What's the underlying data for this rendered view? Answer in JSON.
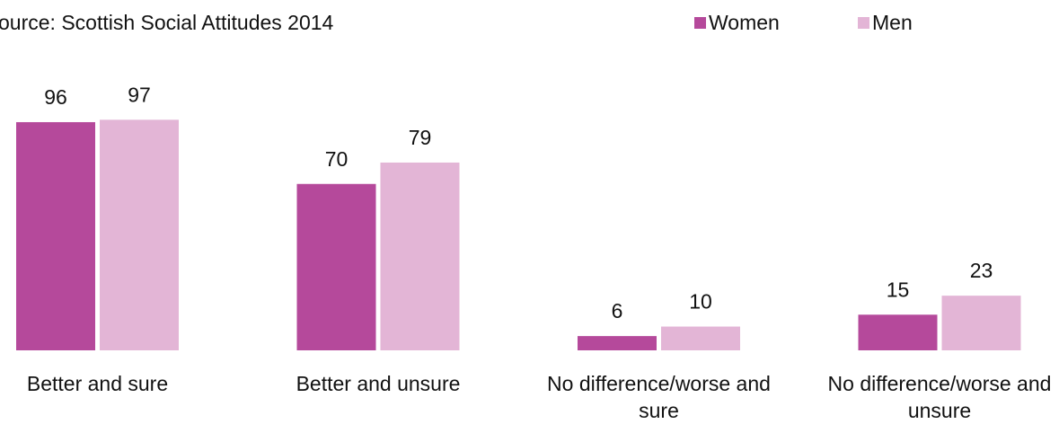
{
  "chart_data": {
    "type": "bar",
    "subtitle": "ource: Scottish Social Attitudes 2014",
    "categories": [
      "Better and sure",
      "Better and unsure",
      "No difference/worse and sure",
      "No difference/worse and unsure"
    ],
    "series": [
      {
        "name": "Women",
        "color": "#b5499b",
        "values": [
          96,
          70,
          6,
          15
        ]
      },
      {
        "name": "Men",
        "color": "#e3b5d6",
        "values": [
          97,
          79,
          10,
          23
        ]
      }
    ],
    "legend": "top-right"
  }
}
